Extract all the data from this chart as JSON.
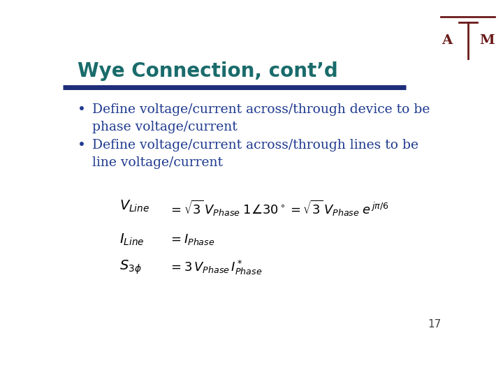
{
  "title": "Wye Connection, cont’d",
  "title_color": "#1a6b6b",
  "title_fontsize": 20,
  "bullet1_line1": "Define voltage/current across/through device to be",
  "bullet1_line2": "phase voltage/current",
  "bullet2_line1": "Define voltage/current across/through lines to be",
  "bullet2_line2": "line voltage/current",
  "bullet_color": "#1f3a8f",
  "bullet_fontsize": 13.5,
  "bg_color": "#ffffff",
  "header_line_color": "#1f2d7a",
  "page_number": "17",
  "eq_color": "#000000",
  "eq_fontsize": 13
}
